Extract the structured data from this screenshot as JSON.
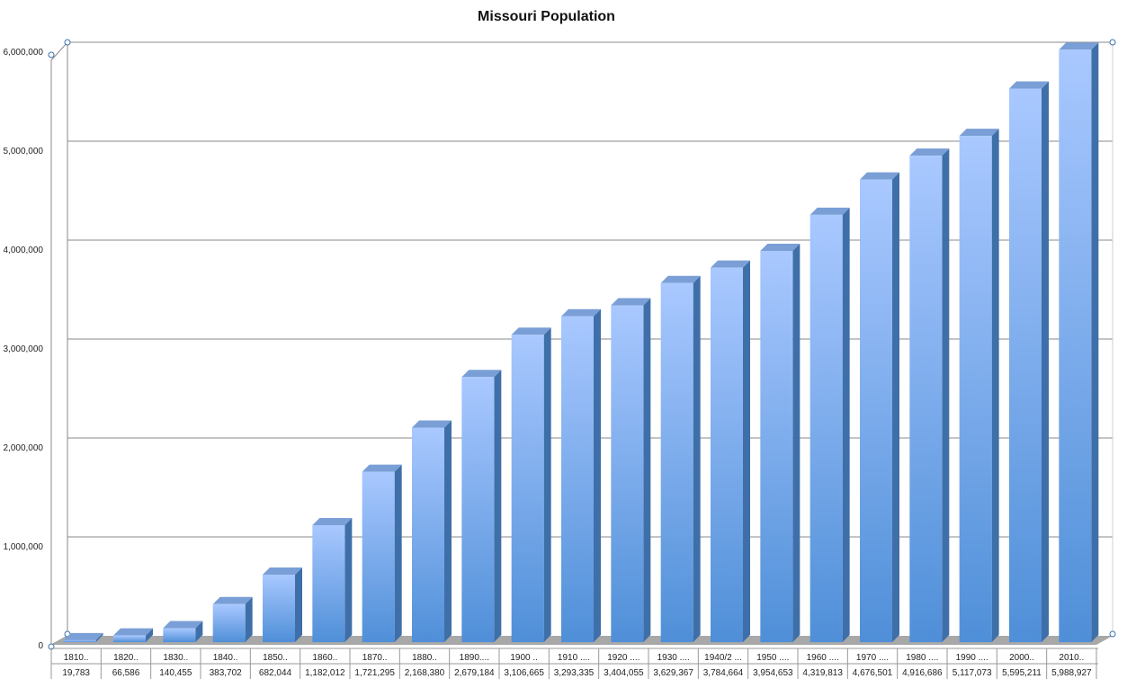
{
  "chart_data": {
    "type": "bar",
    "title": "Missouri Population",
    "xlabel": "",
    "ylabel": "",
    "ylim": [
      0,
      6000000
    ],
    "yticks": [
      0,
      1000000,
      2000000,
      3000000,
      4000000,
      5000000,
      6000000
    ],
    "ytick_labels": [
      "0",
      "1,000,000",
      "2,000,000",
      "3,000,000",
      "4,000,000",
      "5,000,000",
      "6,000,000"
    ],
    "grid": true,
    "legend": "none",
    "categories": [
      "1810..",
      "1820..",
      "1830..",
      "1840..",
      "1850..",
      "1860..",
      "1870..",
      "1880..",
      "1890....",
      "1900 ..",
      "1910 ....",
      "1920 ....",
      "1930 ....",
      "1940/2 ...",
      "1950 ....",
      "1960 ....",
      "1970 ....",
      "1980 ....",
      "1990 ....",
      "2000..",
      "2010.."
    ],
    "values": [
      19783,
      66586,
      140455,
      383702,
      682044,
      1182012,
      1721295,
      2168380,
      2679184,
      3106665,
      3293335,
      3404055,
      3629367,
      3784664,
      3954653,
      4319813,
      4676501,
      4916686,
      5117073,
      5595211,
      5988927
    ],
    "value_labels": [
      "19,783",
      "66,586",
      "140,455",
      "383,702",
      "682,044",
      "1,182,012",
      "1,721,295",
      "2,168,380",
      "2,679,184",
      "3,106,665",
      "3,293,335",
      "3,404,055",
      "3,629,367",
      "3,784,664",
      "3,954,653",
      "4,319,813",
      "4,676,501",
      "4,916,686",
      "5,117,073",
      "5,595,211",
      "5,988,927"
    ],
    "colors": {
      "bar_front_top": "#a9c8ff",
      "bar_front_bottom": "#4f8fd8",
      "bar_side": "#3f6fa8",
      "bar_top": "#7a9fd6",
      "floor": "#a8a8a8",
      "grid": "#8a8a8a"
    }
  }
}
